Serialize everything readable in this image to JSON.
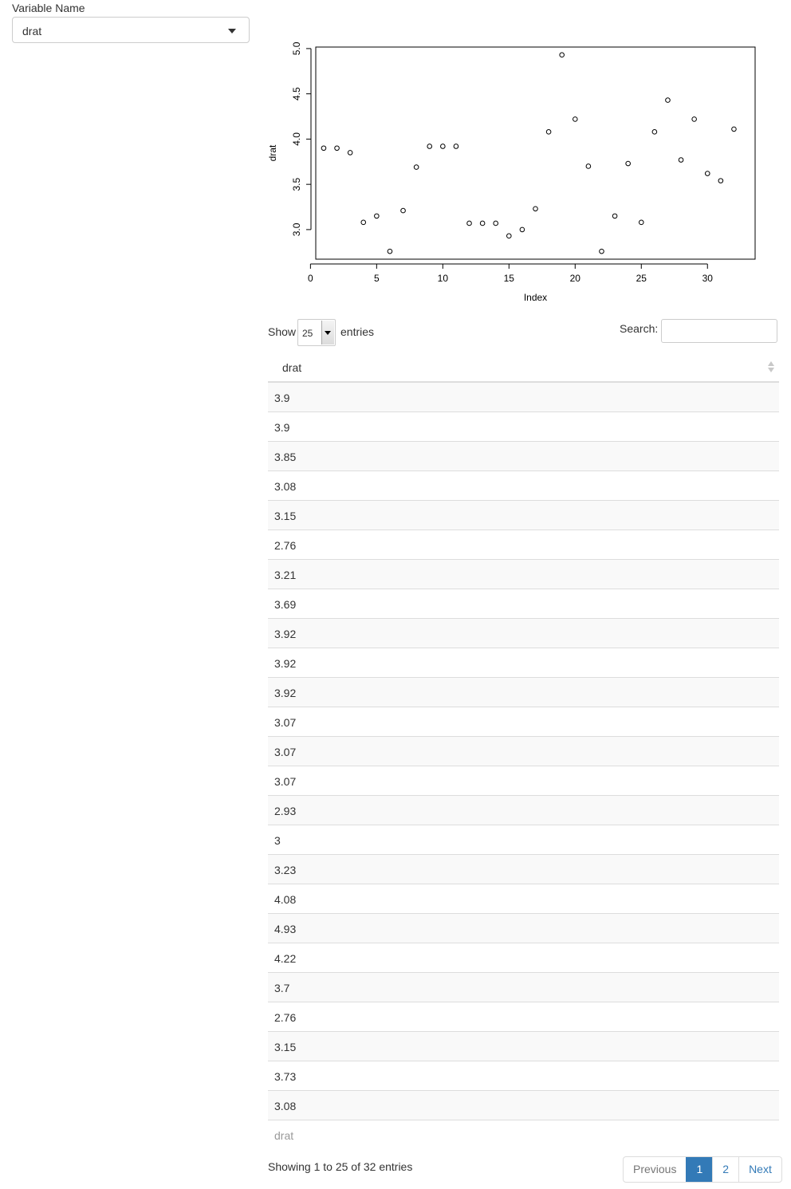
{
  "sidebar": {
    "label": "Variable Name",
    "selected": "drat"
  },
  "chart_data": {
    "type": "scatter",
    "title": "",
    "xlabel": "Index",
    "ylabel": "drat",
    "xlim": [
      0,
      33
    ],
    "ylim": [
      2.76,
      4.93
    ],
    "xticks": [
      "0",
      "5",
      "10",
      "15",
      "20",
      "25",
      "30"
    ],
    "yticks": [
      "3.0",
      "3.5",
      "4.0",
      "4.5",
      "5.0"
    ],
    "x": [
      1,
      2,
      3,
      4,
      5,
      6,
      7,
      8,
      9,
      10,
      11,
      12,
      13,
      14,
      15,
      16,
      17,
      18,
      19,
      20,
      21,
      22,
      23,
      24,
      25,
      26,
      27,
      28,
      29,
      30,
      31,
      32
    ],
    "y": [
      3.9,
      3.9,
      3.85,
      3.08,
      3.15,
      2.76,
      3.21,
      3.69,
      3.92,
      3.92,
      3.92,
      3.07,
      3.07,
      3.07,
      2.93,
      3.0,
      3.23,
      4.08,
      4.93,
      4.22,
      3.7,
      2.76,
      3.15,
      3.73,
      3.08,
      4.08,
      4.43,
      3.77,
      4.22,
      3.62,
      3.54,
      4.11
    ],
    "grid": false,
    "marker": "open-circle"
  },
  "table": {
    "show_label": "Show",
    "entries_label": "entries",
    "page_length": "25",
    "search_label": "Search:",
    "search_value": "",
    "column": "drat",
    "rows": [
      "3.9",
      "3.9",
      "3.85",
      "3.08",
      "3.15",
      "2.76",
      "3.21",
      "3.69",
      "3.92",
      "3.92",
      "3.92",
      "3.07",
      "3.07",
      "3.07",
      "2.93",
      "3",
      "3.23",
      "4.08",
      "4.93",
      "4.22",
      "3.7",
      "2.76",
      "3.15",
      "3.73",
      "3.08"
    ],
    "footer_column": "drat",
    "info": "Showing 1 to 25 of 32 entries",
    "pagination": {
      "previous": "Previous",
      "pages": [
        "1",
        "2"
      ],
      "active_page": "1",
      "next": "Next"
    }
  }
}
